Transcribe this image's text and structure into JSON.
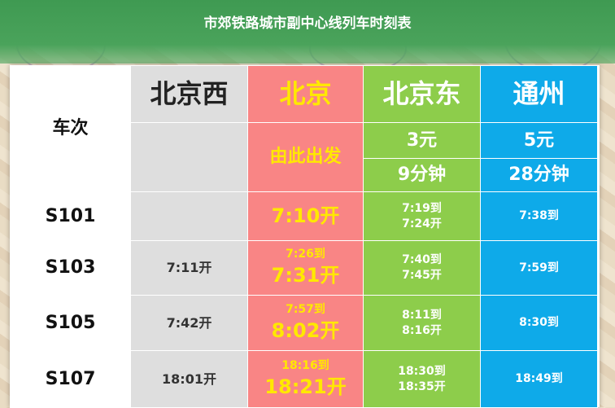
{
  "title": "市郊铁路城市副中心线列车时刻表",
  "table": {
    "train_header": "车次",
    "stations": [
      "北京西",
      "北京",
      "北京东",
      "通州"
    ],
    "beijing_note": "由此出发",
    "fares": {
      "beijingdong": "3元",
      "tongzhou": "5元"
    },
    "durations": {
      "beijingdong": "9分钟",
      "tongzhou": "28分钟"
    },
    "rows": [
      {
        "train": "S101",
        "beijingxi": "",
        "beijing_arr": "",
        "beijing_dep": "7:10开",
        "beijingdong_arr": "7:19到",
        "beijingdong_dep": "7:24开",
        "tongzhou": "7:38到"
      },
      {
        "train": "S103",
        "beijingxi": "7:11开",
        "beijing_arr": "7:26到",
        "beijing_dep": "7:31开",
        "beijingdong_arr": "7:40到",
        "beijingdong_dep": "7:45开",
        "tongzhou": "7:59到"
      },
      {
        "train": "S105",
        "beijingxi": "7:42开",
        "beijing_arr": "7:57到",
        "beijing_dep": "8:02开",
        "beijingdong_arr": "8:11到",
        "beijingdong_dep": "8:16开",
        "tongzhou": "8:30到"
      },
      {
        "train": "S107",
        "beijingxi": "18:01开",
        "beijing_arr": "18:16到",
        "beijing_dep": "18:21开",
        "beijingdong_arr": "18:30到",
        "beijingdong_dep": "18:35开",
        "tongzhou": "18:49到"
      }
    ]
  },
  "colors": {
    "header": "#4aa35b",
    "beijingxi": "#dedede",
    "beijing": "#f98585",
    "beijingdong": "#8dcd4b",
    "tongzhou": "#0eaae9",
    "highlight": "#ffe800"
  }
}
